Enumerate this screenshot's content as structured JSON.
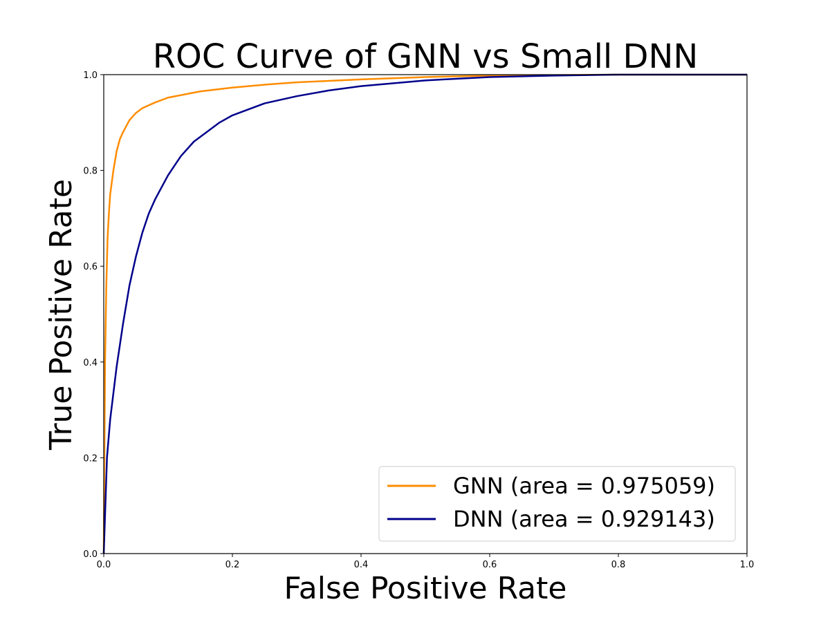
{
  "chart_data": {
    "type": "line",
    "title": "ROC Curve of GNN vs Small DNN",
    "xlabel": "False Positive Rate",
    "ylabel": "True Positive Rate",
    "xlim": [
      0.0,
      1.0
    ],
    "ylim": [
      0.0,
      1.0
    ],
    "xticks": [
      "0.0",
      "0.2",
      "0.4",
      "0.6",
      "0.8",
      "1.0"
    ],
    "yticks": [
      "0.0",
      "0.2",
      "0.4",
      "0.6",
      "0.8",
      "1.0"
    ],
    "grid": false,
    "legend_position": "lower-right",
    "series": [
      {
        "name": "GNN (area = 0.975059)",
        "color": "#ff8c00",
        "x": [
          0.0,
          0.002,
          0.004,
          0.006,
          0.008,
          0.01,
          0.015,
          0.02,
          0.025,
          0.03,
          0.04,
          0.05,
          0.06,
          0.08,
          0.1,
          0.15,
          0.2,
          0.25,
          0.3,
          0.4,
          0.5,
          0.6,
          0.7,
          0.8,
          0.9,
          1.0
        ],
        "y": [
          0.0,
          0.4,
          0.56,
          0.66,
          0.71,
          0.75,
          0.8,
          0.84,
          0.865,
          0.88,
          0.905,
          0.92,
          0.93,
          0.942,
          0.952,
          0.965,
          0.973,
          0.979,
          0.984,
          0.99,
          0.995,
          0.998,
          0.999,
          1.0,
          1.0,
          1.0
        ]
      },
      {
        "name": "DNN (area = 0.929143)",
        "color": "#00008b",
        "x": [
          0.0,
          0.005,
          0.01,
          0.02,
          0.03,
          0.04,
          0.05,
          0.06,
          0.07,
          0.08,
          0.1,
          0.12,
          0.14,
          0.16,
          0.18,
          0.2,
          0.25,
          0.3,
          0.35,
          0.4,
          0.5,
          0.6,
          0.7,
          0.8,
          0.9,
          1.0
        ],
        "y": [
          0.0,
          0.2,
          0.28,
          0.39,
          0.48,
          0.56,
          0.62,
          0.67,
          0.71,
          0.74,
          0.79,
          0.83,
          0.86,
          0.88,
          0.9,
          0.915,
          0.94,
          0.955,
          0.967,
          0.976,
          0.988,
          0.995,
          0.998,
          1.0,
          1.0,
          1.0
        ]
      }
    ]
  }
}
